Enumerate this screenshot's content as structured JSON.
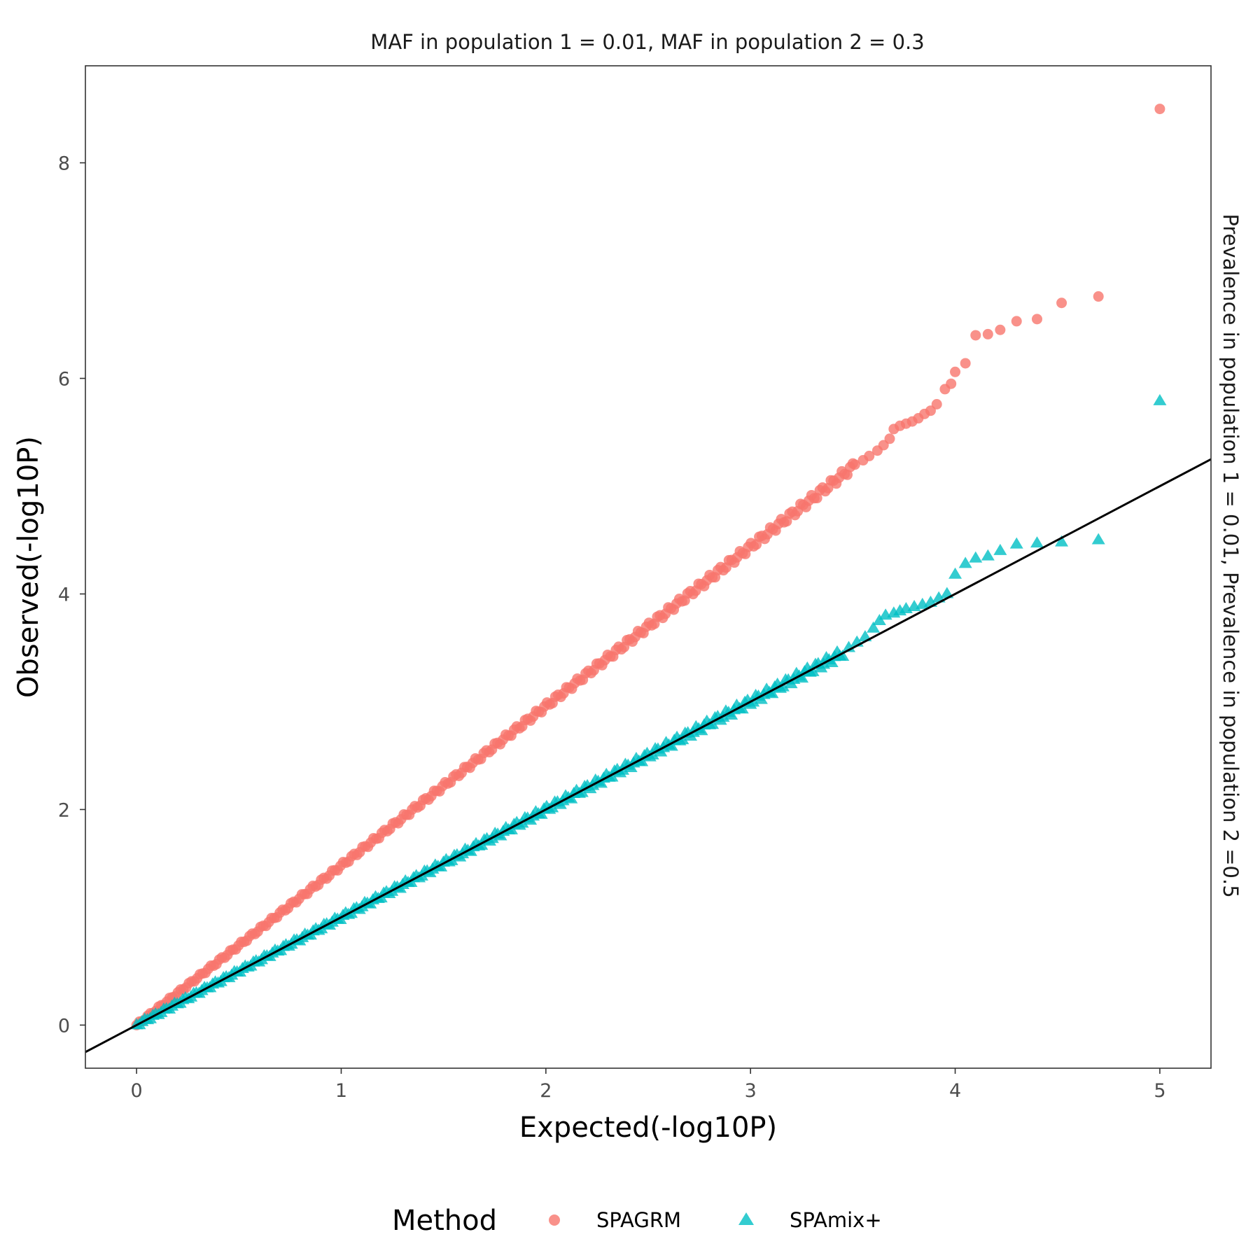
{
  "chart_data": {
    "type": "scatter",
    "panel_title": "MAF in population 1 = 0.01, MAF in population 2 = 0.3",
    "strip_right": "Prevalence in population 1 = 0.01, Prevalence in population 2 =0.5",
    "xlabel": "Expected(-log10P)",
    "ylabel": "Observed(-log10P)",
    "xlim": [
      -0.25,
      5.25
    ],
    "ylim": [
      -0.4,
      8.9
    ],
    "xticks": [
      "0",
      "1",
      "2",
      "3",
      "4",
      "5"
    ],
    "yticks": [
      "0",
      "2",
      "4",
      "6",
      "8"
    ],
    "grid": false,
    "legend": {
      "title": "Method",
      "position": "bottom",
      "entries": [
        "SPAGRM",
        "SPAmix+"
      ]
    },
    "reference_line": {
      "intercept": 0,
      "slope": 1,
      "color": "#000000"
    },
    "series": [
      {
        "name": "SPAGRM",
        "color": "#F8766D",
        "shape": "circle",
        "trend": {
          "x_from": 0,
          "x_to": 3.5,
          "slope": 1.48
        },
        "points": [
          [
            3.51,
            5.2
          ],
          [
            3.55,
            5.24
          ],
          [
            3.58,
            5.28
          ],
          [
            3.62,
            5.33
          ],
          [
            3.65,
            5.38
          ],
          [
            3.68,
            5.44
          ],
          [
            3.7,
            5.53
          ],
          [
            3.73,
            5.56
          ],
          [
            3.76,
            5.58
          ],
          [
            3.79,
            5.6
          ],
          [
            3.82,
            5.63
          ],
          [
            3.85,
            5.67
          ],
          [
            3.88,
            5.7
          ],
          [
            3.91,
            5.76
          ],
          [
            3.95,
            5.9
          ],
          [
            3.98,
            5.95
          ],
          [
            4.0,
            6.06
          ],
          [
            4.05,
            6.14
          ],
          [
            4.1,
            6.4
          ],
          [
            4.16,
            6.41
          ],
          [
            4.22,
            6.45
          ],
          [
            4.3,
            6.53
          ],
          [
            4.4,
            6.55
          ],
          [
            4.52,
            6.7
          ],
          [
            4.7,
            6.76
          ],
          [
            5.0,
            8.5
          ]
        ]
      },
      {
        "name": "SPAmix+",
        "color": "#00BFC4",
        "shape": "triangle",
        "trend": {
          "x_from": 0,
          "x_to": 3.45,
          "slope": 1.0
        },
        "points": [
          [
            3.48,
            3.5
          ],
          [
            3.52,
            3.55
          ],
          [
            3.56,
            3.6
          ],
          [
            3.6,
            3.68
          ],
          [
            3.63,
            3.75
          ],
          [
            3.66,
            3.8
          ],
          [
            3.7,
            3.82
          ],
          [
            3.73,
            3.84
          ],
          [
            3.76,
            3.86
          ],
          [
            3.8,
            3.88
          ],
          [
            3.84,
            3.9
          ],
          [
            3.88,
            3.92
          ],
          [
            3.92,
            3.96
          ],
          [
            3.96,
            4.0
          ],
          [
            4.0,
            4.18
          ],
          [
            4.05,
            4.28
          ],
          [
            4.1,
            4.33
          ],
          [
            4.16,
            4.35
          ],
          [
            4.22,
            4.4
          ],
          [
            4.3,
            4.46
          ],
          [
            4.4,
            4.47
          ],
          [
            4.52,
            4.48
          ],
          [
            4.7,
            4.5
          ],
          [
            5.0,
            5.79
          ]
        ]
      }
    ]
  }
}
